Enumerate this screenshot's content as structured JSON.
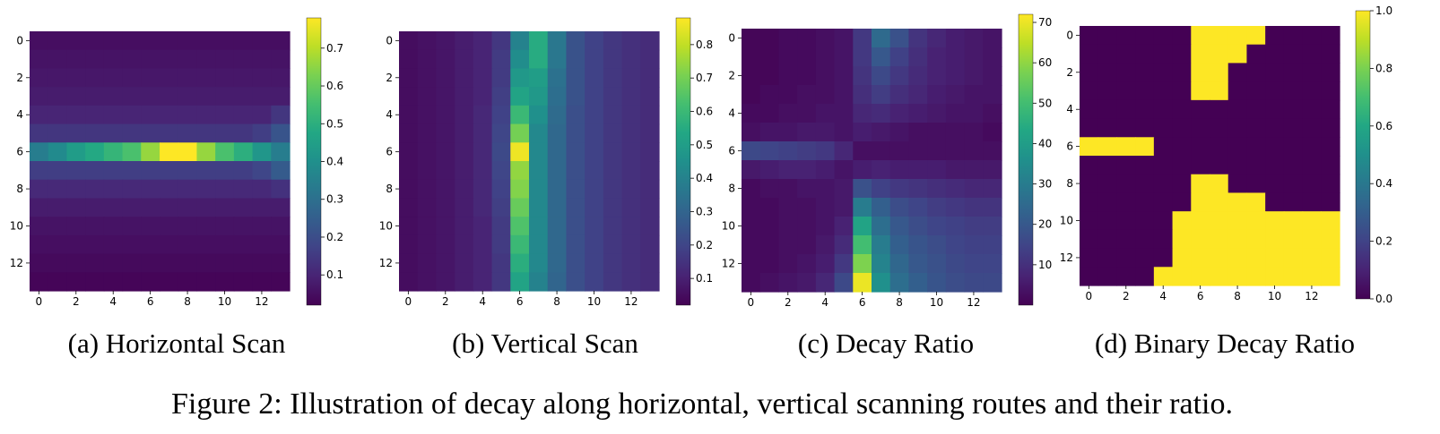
{
  "caption": "Figure 2: Illustration of decay along horizontal, vertical scanning routes and their ratio.",
  "chart_data": [
    {
      "type": "heatmap",
      "subcaption": "(a) Horizontal Scan",
      "grid_size": 14,
      "xticks": [
        0,
        2,
        4,
        6,
        8,
        10,
        12
      ],
      "yticks": [
        0,
        2,
        4,
        6,
        8,
        10,
        12
      ],
      "colormap": "viridis",
      "vmin": 0.02,
      "vmax": 0.78,
      "colorbar_ticks": [
        0.1,
        0.2,
        0.3,
        0.4,
        0.5,
        0.6,
        0.7
      ],
      "values": [
        [
          0.05,
          0.05,
          0.05,
          0.05,
          0.05,
          0.05,
          0.05,
          0.05,
          0.05,
          0.05,
          0.05,
          0.05,
          0.05,
          0.05
        ],
        [
          0.06,
          0.06,
          0.06,
          0.06,
          0.06,
          0.06,
          0.06,
          0.06,
          0.06,
          0.06,
          0.06,
          0.06,
          0.06,
          0.06
        ],
        [
          0.07,
          0.07,
          0.07,
          0.07,
          0.07,
          0.07,
          0.07,
          0.07,
          0.07,
          0.07,
          0.07,
          0.07,
          0.07,
          0.07
        ],
        [
          0.08,
          0.08,
          0.08,
          0.08,
          0.08,
          0.08,
          0.08,
          0.08,
          0.08,
          0.08,
          0.08,
          0.08,
          0.08,
          0.08
        ],
        [
          0.1,
          0.1,
          0.1,
          0.1,
          0.1,
          0.1,
          0.1,
          0.1,
          0.1,
          0.1,
          0.1,
          0.1,
          0.1,
          0.14
        ],
        [
          0.14,
          0.14,
          0.14,
          0.14,
          0.14,
          0.14,
          0.14,
          0.14,
          0.14,
          0.14,
          0.14,
          0.14,
          0.16,
          0.22
        ],
        [
          0.34,
          0.38,
          0.44,
          0.48,
          0.52,
          0.56,
          0.66,
          0.78,
          0.78,
          0.66,
          0.56,
          0.5,
          0.42,
          0.34
        ],
        [
          0.16,
          0.16,
          0.16,
          0.16,
          0.16,
          0.16,
          0.16,
          0.16,
          0.16,
          0.16,
          0.16,
          0.16,
          0.18,
          0.24
        ],
        [
          0.11,
          0.11,
          0.11,
          0.11,
          0.11,
          0.11,
          0.11,
          0.11,
          0.11,
          0.11,
          0.11,
          0.11,
          0.11,
          0.13
        ],
        [
          0.08,
          0.08,
          0.08,
          0.08,
          0.08,
          0.08,
          0.08,
          0.08,
          0.08,
          0.08,
          0.08,
          0.08,
          0.08,
          0.08
        ],
        [
          0.06,
          0.06,
          0.06,
          0.06,
          0.06,
          0.06,
          0.06,
          0.06,
          0.06,
          0.06,
          0.06,
          0.06,
          0.06,
          0.06
        ],
        [
          0.05,
          0.05,
          0.05,
          0.05,
          0.05,
          0.05,
          0.05,
          0.05,
          0.05,
          0.05,
          0.05,
          0.05,
          0.05,
          0.05
        ],
        [
          0.04,
          0.04,
          0.04,
          0.04,
          0.04,
          0.04,
          0.04,
          0.04,
          0.04,
          0.04,
          0.04,
          0.04,
          0.04,
          0.04
        ],
        [
          0.03,
          0.03,
          0.03,
          0.03,
          0.03,
          0.03,
          0.03,
          0.03,
          0.03,
          0.03,
          0.03,
          0.03,
          0.03,
          0.03
        ]
      ]
    },
    {
      "type": "heatmap",
      "subcaption": "(b) Vertical Scan",
      "grid_size": 14,
      "xticks": [
        0,
        2,
        4,
        6,
        8,
        10,
        12
      ],
      "yticks": [
        0,
        2,
        4,
        6,
        8,
        10,
        12
      ],
      "colormap": "viridis",
      "vmin": 0.02,
      "vmax": 0.88,
      "colorbar_ticks": [
        0.1,
        0.2,
        0.3,
        0.4,
        0.5,
        0.6,
        0.7,
        0.8
      ],
      "values": [
        [
          0.05,
          0.06,
          0.07,
          0.09,
          0.11,
          0.16,
          0.4,
          0.55,
          0.36,
          0.24,
          0.19,
          0.16,
          0.14,
          0.13
        ],
        [
          0.05,
          0.06,
          0.07,
          0.09,
          0.11,
          0.17,
          0.44,
          0.55,
          0.36,
          0.24,
          0.19,
          0.16,
          0.14,
          0.13
        ],
        [
          0.05,
          0.06,
          0.07,
          0.09,
          0.11,
          0.17,
          0.48,
          0.5,
          0.34,
          0.24,
          0.19,
          0.16,
          0.14,
          0.13
        ],
        [
          0.05,
          0.06,
          0.07,
          0.09,
          0.11,
          0.18,
          0.52,
          0.48,
          0.33,
          0.24,
          0.19,
          0.16,
          0.14,
          0.13
        ],
        [
          0.05,
          0.06,
          0.07,
          0.09,
          0.12,
          0.19,
          0.6,
          0.45,
          0.32,
          0.23,
          0.19,
          0.16,
          0.14,
          0.13
        ],
        [
          0.05,
          0.06,
          0.07,
          0.09,
          0.12,
          0.2,
          0.7,
          0.42,
          0.31,
          0.23,
          0.19,
          0.16,
          0.14,
          0.13
        ],
        [
          0.05,
          0.06,
          0.07,
          0.09,
          0.12,
          0.21,
          0.86,
          0.42,
          0.31,
          0.23,
          0.19,
          0.16,
          0.14,
          0.13
        ],
        [
          0.05,
          0.06,
          0.07,
          0.09,
          0.12,
          0.2,
          0.74,
          0.42,
          0.31,
          0.23,
          0.19,
          0.16,
          0.14,
          0.13
        ],
        [
          0.05,
          0.06,
          0.07,
          0.09,
          0.12,
          0.19,
          0.72,
          0.42,
          0.31,
          0.23,
          0.19,
          0.16,
          0.14,
          0.13
        ],
        [
          0.05,
          0.06,
          0.07,
          0.09,
          0.12,
          0.18,
          0.68,
          0.42,
          0.31,
          0.23,
          0.19,
          0.16,
          0.14,
          0.13
        ],
        [
          0.05,
          0.06,
          0.07,
          0.09,
          0.11,
          0.17,
          0.64,
          0.42,
          0.31,
          0.23,
          0.19,
          0.16,
          0.14,
          0.13
        ],
        [
          0.05,
          0.06,
          0.07,
          0.09,
          0.11,
          0.17,
          0.6,
          0.42,
          0.31,
          0.23,
          0.19,
          0.16,
          0.14,
          0.13
        ],
        [
          0.05,
          0.06,
          0.07,
          0.09,
          0.11,
          0.16,
          0.56,
          0.42,
          0.31,
          0.23,
          0.19,
          0.16,
          0.14,
          0.13
        ],
        [
          0.05,
          0.06,
          0.07,
          0.09,
          0.11,
          0.16,
          0.52,
          0.4,
          0.3,
          0.23,
          0.19,
          0.16,
          0.14,
          0.13
        ]
      ]
    },
    {
      "type": "heatmap",
      "subcaption": "(c) Decay Ratio",
      "grid_size": 14,
      "xticks": [
        0,
        2,
        4,
        6,
        8,
        10,
        12
      ],
      "yticks": [
        0,
        2,
        4,
        6,
        8,
        10,
        12
      ],
      "colormap": "viridis",
      "vmin": 0,
      "vmax": 72,
      "colorbar_ticks": [
        10,
        20,
        30,
        40,
        50,
        60,
        70
      ],
      "values": [
        [
          1,
          1,
          2,
          2,
          3,
          4,
          12,
          25,
          18,
          11,
          8,
          6,
          5,
          4
        ],
        [
          1,
          1,
          2,
          2,
          3,
          4,
          12,
          20,
          14,
          10,
          7,
          6,
          5,
          4
        ],
        [
          1,
          1,
          2,
          2,
          3,
          4,
          11,
          16,
          12,
          9,
          7,
          6,
          5,
          4
        ],
        [
          1,
          2,
          2,
          3,
          3,
          4,
          10,
          13,
          10,
          8,
          6,
          5,
          4,
          4
        ],
        [
          2,
          2,
          3,
          3,
          4,
          4,
          8,
          9,
          7,
          6,
          5,
          4,
          4,
          3
        ],
        [
          3,
          4,
          4,
          5,
          5,
          4,
          6,
          5,
          4,
          3,
          3,
          3,
          3,
          2
        ],
        [
          16,
          15,
          14,
          13,
          12,
          8,
          3,
          3,
          3,
          3,
          3,
          3,
          3,
          3
        ],
        [
          5,
          6,
          7,
          7,
          6,
          4,
          6,
          7,
          6,
          6,
          6,
          5,
          5,
          5
        ],
        [
          2,
          3,
          3,
          4,
          4,
          5,
          18,
          14,
          12,
          11,
          10,
          9,
          8,
          8
        ],
        [
          2,
          2,
          3,
          3,
          4,
          5,
          30,
          22,
          17,
          15,
          13,
          12,
          11,
          11
        ],
        [
          2,
          2,
          3,
          3,
          4,
          7,
          42,
          26,
          20,
          17,
          15,
          14,
          13,
          13
        ],
        [
          2,
          2,
          3,
          3,
          5,
          9,
          50,
          30,
          22,
          19,
          17,
          15,
          14,
          14
        ],
        [
          2,
          2,
          3,
          4,
          6,
          12,
          58,
          32,
          24,
          20,
          18,
          16,
          15,
          15
        ],
        [
          2,
          3,
          4,
          5,
          8,
          16,
          70,
          36,
          26,
          22,
          19,
          17,
          16,
          16
        ]
      ]
    },
    {
      "type": "heatmap",
      "subcaption": "(d) Binary Decay Ratio",
      "grid_size": 14,
      "xticks": [
        0,
        2,
        4,
        6,
        8,
        10,
        12
      ],
      "yticks": [
        0,
        2,
        4,
        6,
        8,
        10,
        12
      ],
      "colormap": "viridis",
      "vmin": 0,
      "vmax": 1,
      "colorbar_ticks": [
        0.0,
        0.2,
        0.4,
        0.6,
        0.8,
        1.0
      ],
      "values": [
        [
          0,
          0,
          0,
          0,
          0,
          0,
          1,
          1,
          1,
          1,
          0,
          0,
          0,
          0
        ],
        [
          0,
          0,
          0,
          0,
          0,
          0,
          1,
          1,
          1,
          0,
          0,
          0,
          0,
          0
        ],
        [
          0,
          0,
          0,
          0,
          0,
          0,
          1,
          1,
          0,
          0,
          0,
          0,
          0,
          0
        ],
        [
          0,
          0,
          0,
          0,
          0,
          0,
          1,
          1,
          0,
          0,
          0,
          0,
          0,
          0
        ],
        [
          0,
          0,
          0,
          0,
          0,
          0,
          0,
          0,
          0,
          0,
          0,
          0,
          0,
          0
        ],
        [
          0,
          0,
          0,
          0,
          0,
          0,
          0,
          0,
          0,
          0,
          0,
          0,
          0,
          0
        ],
        [
          1,
          1,
          1,
          1,
          0,
          0,
          0,
          0,
          0,
          0,
          0,
          0,
          0,
          0
        ],
        [
          0,
          0,
          0,
          0,
          0,
          0,
          0,
          0,
          0,
          0,
          0,
          0,
          0,
          0
        ],
        [
          0,
          0,
          0,
          0,
          0,
          0,
          1,
          1,
          0,
          0,
          0,
          0,
          0,
          0
        ],
        [
          0,
          0,
          0,
          0,
          0,
          0,
          1,
          1,
          1,
          1,
          0,
          0,
          0,
          0
        ],
        [
          0,
          0,
          0,
          0,
          0,
          1,
          1,
          1,
          1,
          1,
          1,
          1,
          1,
          1
        ],
        [
          0,
          0,
          0,
          0,
          0,
          1,
          1,
          1,
          1,
          1,
          1,
          1,
          1,
          1
        ],
        [
          0,
          0,
          0,
          0,
          0,
          1,
          1,
          1,
          1,
          1,
          1,
          1,
          1,
          1
        ],
        [
          0,
          0,
          0,
          0,
          1,
          1,
          1,
          1,
          1,
          1,
          1,
          1,
          1,
          1
        ]
      ]
    }
  ]
}
